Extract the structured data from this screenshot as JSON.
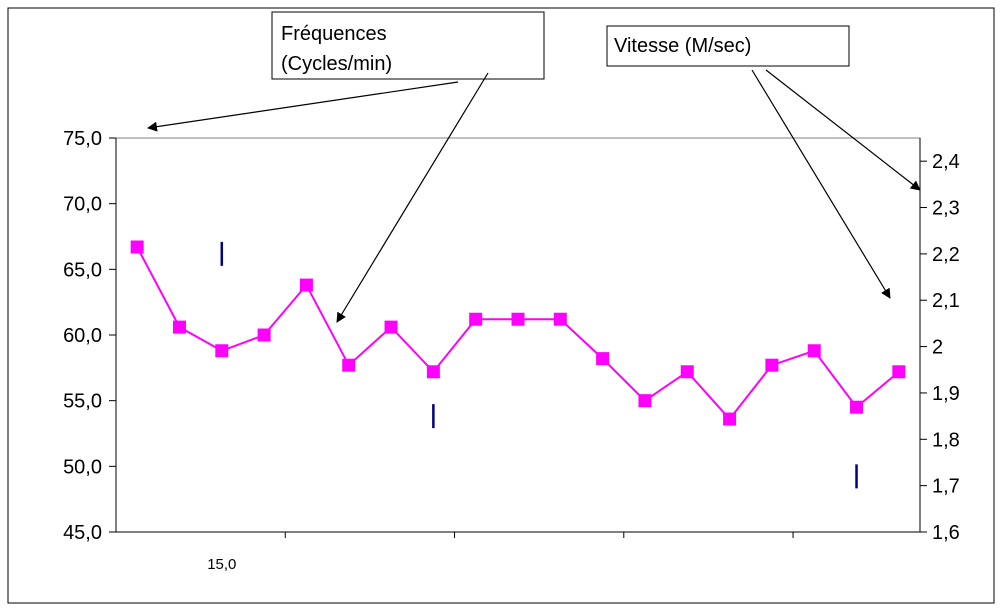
{
  "chart_data": {
    "type": "line",
    "title": "",
    "xlabel": "",
    "ylabel": "",
    "x_tick_labels": [
      "15,0"
    ],
    "y_left": {
      "ylim": [
        45,
        75
      ],
      "ticks": [
        45,
        50,
        55,
        60,
        65,
        70,
        75
      ],
      "tick_labels": [
        "45,0",
        "50,0",
        "55,0",
        "60,0",
        "65,0",
        "70,0",
        "75,0"
      ]
    },
    "y_right": {
      "ylim": [
        1.6,
        2.45
      ],
      "ticks": [
        1.6,
        1.7,
        1.8,
        1.9,
        2.0,
        2.1,
        2.2,
        2.3,
        2.4
      ],
      "tick_labels": [
        "1,6",
        "1,7",
        "1,8",
        "1,9",
        "2",
        "2,1",
        "2,2",
        "2,3",
        "2,4"
      ]
    },
    "x_range": [
      0,
      19
    ],
    "x_major_ticks": [
      4,
      8,
      12,
      16
    ],
    "series": [
      {
        "axis": "left",
        "color": "#ff00ff",
        "marker": "square",
        "x": [
          0.5,
          1.5,
          2.5,
          3.5,
          4.5,
          5.5,
          6.5,
          7.5,
          8.5,
          9.5,
          10.5,
          11.5,
          12.5,
          13.5,
          14.5,
          15.5,
          16.5,
          17.5,
          18.5
        ],
        "values": [
          66.7,
          60.6,
          58.8,
          60.0,
          63.8,
          57.7,
          60.6,
          57.2,
          61.2,
          61.2,
          61.2,
          58.2,
          55.0,
          57.2,
          53.6,
          57.7,
          58.8,
          54.5,
          57.2
        ]
      },
      {
        "axis": "right",
        "color": "#000080",
        "marker": "dash",
        "x": [
          2.5,
          7.5,
          17.5
        ],
        "values": [
          2.2,
          1.85,
          1.72
        ]
      }
    ],
    "annotations": [
      {
        "id": "frequences",
        "text_lines": [
          "Fréquences",
          "(Cycles/min)"
        ]
      },
      {
        "id": "vitesse",
        "text_lines": [
          "Vitesse (M/sec)"
        ]
      }
    ],
    "grid": false,
    "legend": "none"
  }
}
